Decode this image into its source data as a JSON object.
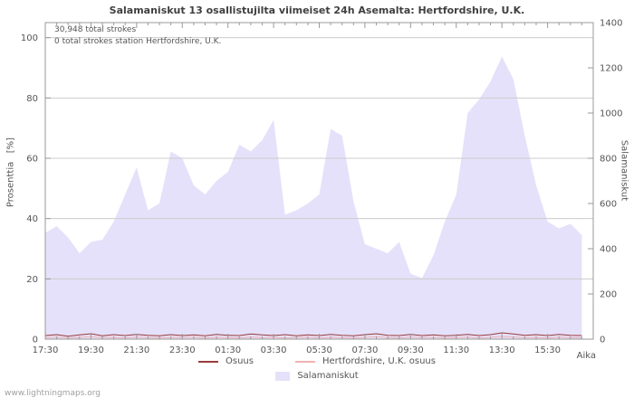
{
  "title": "Salamaniskut 13 osallistujilta viimeiset 24h Asemalta: Hertfordshire, U.K.",
  "annotations": {
    "total_strokes": "30,948 total strokes",
    "station_strokes": "0 total strokes station Hertfordshire, U.K."
  },
  "axes": {
    "left_label": "Prosenttia   [%]",
    "right_label": "Salamaniskut",
    "x_label": "Aika"
  },
  "legend": {
    "osuus": "Osuus",
    "station_osuus": "Hertfordshire, U.K. osuus",
    "salamaniskut": "Salamaniskut"
  },
  "watermark": "www.lightningmaps.org",
  "colors": {
    "area_fill": "#e5e1fa",
    "osuus_line": "#993b3b",
    "station_line": "#f0b2b2",
    "grid": "#cccccc",
    "axis": "#999999",
    "text": "#555555"
  },
  "chart_data": {
    "type": "area",
    "title": "Salamaniskut 13 osallistujilta viimeiset 24h Asemalta: Hertfordshire, U.K.",
    "xlabel": "Aika",
    "ylabel_left": "Prosenttia [%]",
    "ylabel_right": "Salamaniskut",
    "grid": true,
    "legend_position": "bottom",
    "x": [
      "17:30",
      "18:00",
      "18:30",
      "19:00",
      "19:30",
      "20:00",
      "20:30",
      "21:00",
      "21:30",
      "22:00",
      "22:30",
      "23:00",
      "23:30",
      "00:00",
      "00:30",
      "01:00",
      "01:30",
      "02:00",
      "02:30",
      "03:00",
      "03:30",
      "04:00",
      "04:30",
      "05:00",
      "05:30",
      "06:00",
      "06:30",
      "07:00",
      "07:30",
      "08:00",
      "08:30",
      "09:00",
      "09:30",
      "10:00",
      "10:30",
      "11:00",
      "11:30",
      "12:00",
      "12:30",
      "13:00",
      "13:30",
      "14:00",
      "14:30",
      "15:00",
      "15:30",
      "16:00",
      "16:30",
      "17:00"
    ],
    "x_tick_labels": [
      "17:30",
      "19:30",
      "21:30",
      "23:30",
      "01:30",
      "03:30",
      "05:30",
      "07:30",
      "09:30",
      "11:30",
      "13:30",
      "15:30"
    ],
    "left_axis": {
      "ticks": [
        0,
        20,
        40,
        60,
        80,
        100
      ],
      "range": [
        0,
        105
      ]
    },
    "right_axis": {
      "ticks": [
        0,
        200,
        400,
        600,
        800,
        1000,
        1200,
        1400
      ],
      "range": [
        0,
        1400
      ]
    },
    "series": [
      {
        "name": "Salamaniskut",
        "type": "area",
        "axis": "right",
        "values": [
          470,
          500,
          450,
          380,
          430,
          440,
          520,
          640,
          760,
          570,
          600,
          830,
          800,
          680,
          640,
          700,
          740,
          860,
          830,
          880,
          970,
          550,
          570,
          600,
          640,
          930,
          900,
          610,
          420,
          400,
          380,
          430,
          290,
          270,
          370,
          520,
          640,
          1000,
          1060,
          1140,
          1250,
          1150,
          900,
          680,
          520,
          490,
          510,
          460
        ]
      },
      {
        "name": "Osuus",
        "type": "line",
        "axis": "left",
        "values": [
          1.2,
          1.5,
          1.0,
          1.4,
          1.8,
          1.1,
          1.5,
          1.2,
          1.6,
          1.3,
          1.1,
          1.5,
          1.2,
          1.4,
          1.1,
          1.6,
          1.3,
          1.2,
          1.7,
          1.4,
          1.2,
          1.5,
          1.1,
          1.4,
          1.2,
          1.6,
          1.3,
          1.1,
          1.5,
          1.8,
          1.3,
          1.2,
          1.6,
          1.2,
          1.4,
          1.1,
          1.3,
          1.6,
          1.2,
          1.5,
          2.1,
          1.7,
          1.3,
          1.5,
          1.2,
          1.6,
          1.3,
          1.2
        ]
      },
      {
        "name": "Hertfordshire, U.K. osuus",
        "type": "line",
        "axis": "left",
        "values": [
          0.5,
          0.7,
          0.4,
          0.6,
          0.8,
          0.5,
          0.6,
          0.4,
          0.7,
          0.5,
          0.4,
          0.6,
          0.5,
          0.7,
          0.4,
          0.6,
          0.5,
          0.4,
          0.7,
          0.5,
          0.6,
          0.4,
          0.5,
          0.7,
          0.4,
          0.6,
          0.5,
          0.4,
          0.6,
          0.8,
          0.5,
          0.4,
          0.7,
          0.5,
          0.6,
          0.4,
          0.5,
          0.7,
          0.4,
          0.6,
          0.9,
          0.7,
          0.5,
          0.6,
          0.4,
          0.7,
          0.5,
          0.4
        ]
      }
    ]
  }
}
